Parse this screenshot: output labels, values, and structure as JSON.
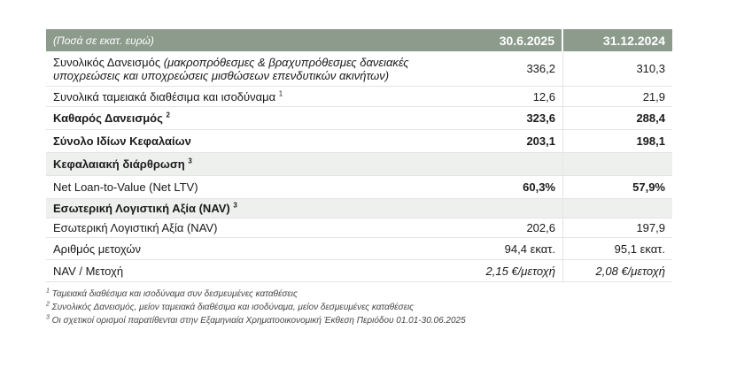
{
  "header": {
    "label": "(Ποσά σε εκατ. ευρώ)",
    "col1": "30.6.2025",
    "col2": "31.12.2024"
  },
  "rows": [
    {
      "label_a": "Συνολικός Δανεισμός ",
      "label_b": "(μακροπρόθεσμες & βραχυπρόθεσμες δανειακές υποχρεώσεις και υποχρεώσεις μισθώσεων επενδυτικών ακινήτων)",
      "sup": "",
      "v1": "336,2",
      "v2": "310,3"
    },
    {
      "label_a": "Συνολικά ταμειακά διαθέσιμα και ισοδύναμα ",
      "label_b": "",
      "sup": "1",
      "v1": "12,6",
      "v2": "21,9"
    },
    {
      "label_a": "Καθαρός Δανεισμός ",
      "label_b": "",
      "sup": "2",
      "v1": "323,6",
      "v2": "288,4"
    },
    {
      "label_a": "Σύνολο Ιδίων Κεφαλαίων",
      "label_b": "",
      "sup": "",
      "v1": "203,1",
      "v2": "198,1"
    },
    {
      "label_a": "Κεφαλαιακή διάρθρωση ",
      "label_b": "",
      "sup": "3",
      "v1": "",
      "v2": ""
    },
    {
      "label_a": "Net Loan-to-Value (Net LTV)",
      "label_b": "",
      "sup": "",
      "v1": "60,3%",
      "v2": "57,9%"
    },
    {
      "label_a": "Εσωτερική Λογιστική Αξία (NAV) ",
      "label_b": "",
      "sup": "3",
      "v1": "",
      "v2": ""
    },
    {
      "label_a": "Εσωτερική Λογιστική Αξία (NAV)",
      "label_b": "",
      "sup": "",
      "v1": "202,6",
      "v2": "197,9"
    },
    {
      "label_a": "Αριθμός μετοχών",
      "label_b": "",
      "sup": "",
      "v1": "94,4 εκατ.",
      "v2": "95,1 εκατ."
    },
    {
      "label_a": "NAV / Μετοχή",
      "label_b": "",
      "sup": "",
      "v1": "2,15 €/μετοχή",
      "v2": "2,08 €/μετοχή"
    }
  ],
  "notes": [
    {
      "num": "1",
      "text": " Ταμειακά διαθέσιμα και ισοδύναμα συν δεσμευμένες καταθέσεις"
    },
    {
      "num": "2",
      "text": " Συνολικός Δανεισμός, μείον ταμειακά διαθέσιμα και ισοδύναμα, μείον δεσμευμένες καταθέσεις"
    },
    {
      "num": "3",
      "text": " Οι σχετικοί ορισμοί παρατίθενται στην Εξαμηνιαία Χρηματοοικονομική Έκθεση Περιόδου 01.01-30.06.2025"
    }
  ]
}
